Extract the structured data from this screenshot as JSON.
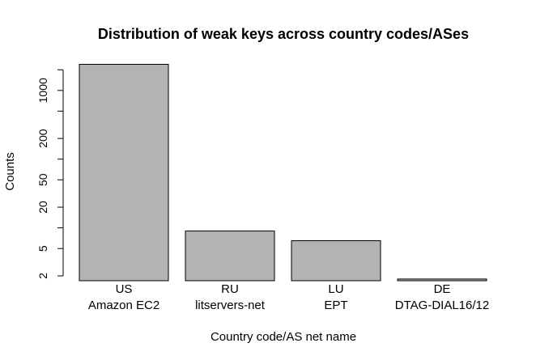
{
  "chart_data": {
    "type": "bar",
    "title": "Distribution of weak keys across country codes/ASes",
    "xlabel": "Country code/AS net name",
    "ylabel": "Counts",
    "y_scale": "log",
    "y_ticks": [
      2,
      5,
      20,
      50,
      200,
      1000
    ],
    "y_tick_labels": [
      "2",
      "5",
      "20",
      "50",
      "200",
      "1000"
    ],
    "y_minor_ticks": [
      10,
      100,
      500,
      2000
    ],
    "ylim": [
      1.7,
      2500
    ],
    "categories": [
      {
        "code": "US",
        "name": "Amazon EC2"
      },
      {
        "code": "RU",
        "name": "litservers-net"
      },
      {
        "code": "LU",
        "name": "EPT"
      },
      {
        "code": "DE",
        "name": "DTAG-DIAL16/12"
      }
    ],
    "values": [
      2400,
      9,
      6.5,
      1.8
    ],
    "bar_color": "#b3b3b3"
  }
}
